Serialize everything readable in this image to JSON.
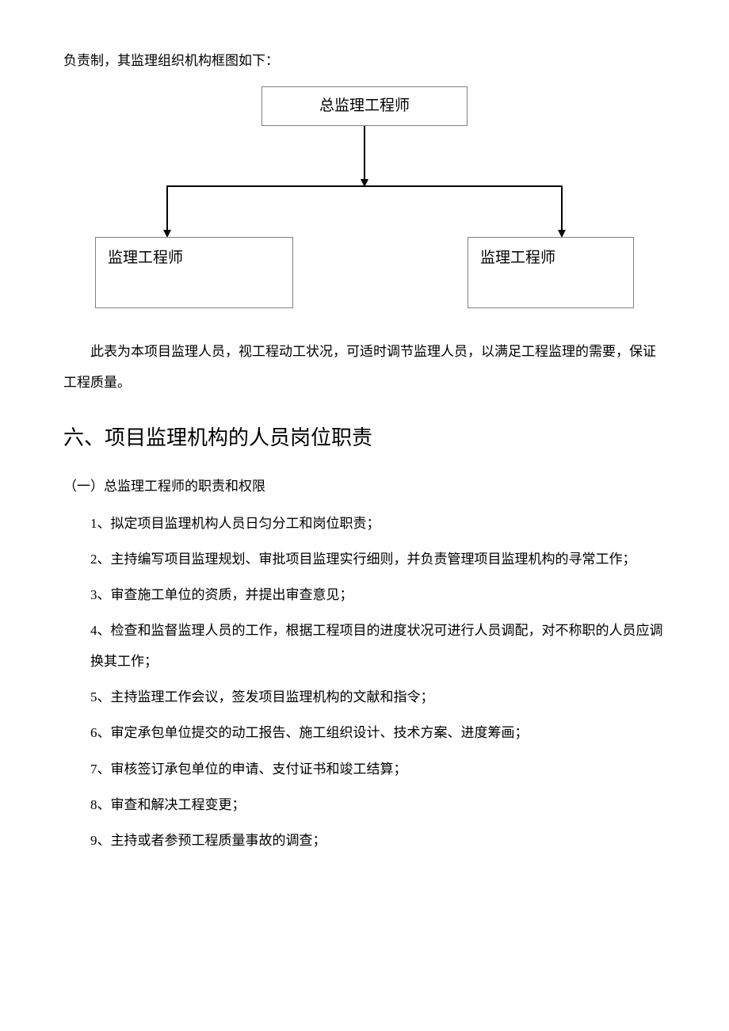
{
  "intro": "负责制，其监理组织机构框图如下：",
  "diagram": {
    "type": "flowchart",
    "nodes": [
      {
        "id": "top",
        "label": "总监理工程师"
      },
      {
        "id": "left",
        "label": "监理工程师"
      },
      {
        "id": "right",
        "label": "监理工程师"
      }
    ],
    "edges": [
      {
        "from": "top",
        "to": "left"
      },
      {
        "from": "top",
        "to": "right"
      }
    ],
    "box_border_color": "#808080",
    "box_bg": "#ffffff",
    "line_color": "#000000",
    "node_fontsize": 19
  },
  "note": "此表为本项目监理人员，视工程动工状况，可适时调节监理人员，以满足工程监理的需要，保证工程质量。",
  "section": {
    "heading": "六、项目监理机构的人员岗位职责",
    "sub": "（一）总监理工程师的职责和权限",
    "items": [
      "1、拟定项目监理机构人员日匀分工和岗位职责；",
      "2、主持编写项目监理规划、审批项目监理实行细则，并负责管理项目监理机构的寻常工作；",
      "3、审查施工单位的资质，并提出审查意见；",
      "4、检查和监督监理人员的工作，根据工程项目的进度状况可进行人员调配，对不称职的人员应调换其工作；",
      "5、主持监理工作会议，签发项目监理机构的文献和指令；",
      "6、审定承包单位提交的动工报告、施工组织设计、技术方案、进度筹画；",
      "7、审核签订承包单位的申请、支付证书和竣工结算；",
      "8、审查和解决工程变更；",
      "9、主持或者参预工程质量事故的调查；"
    ]
  },
  "colors": {
    "text": "#000000",
    "background": "#ffffff"
  },
  "typography": {
    "body_fontsize": 17,
    "heading_fontsize": 26,
    "line_height": 2.3
  }
}
